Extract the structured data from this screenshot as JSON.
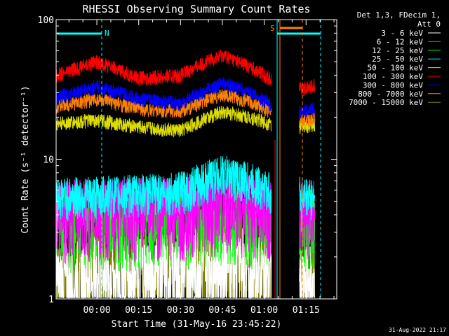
{
  "chart_data": {
    "type": "line",
    "title": "RHESSI Observing Summary Count Rates",
    "xlabel": "Start Time (31-May-16 23:45:22)",
    "ylabel": "Count Rate (s⁻¹ detector⁻¹)",
    "y_scale": "log",
    "ylim": [
      1,
      100
    ],
    "xlim_minutes": [
      -14.6,
      86
    ],
    "y_ticks": [
      {
        "value": 1,
        "label": "1"
      },
      {
        "value": 10,
        "label": "10"
      },
      {
        "value": 100,
        "label": "100"
      }
    ],
    "x_ticks": [
      {
        "value": 0,
        "label": "00:00"
      },
      {
        "value": 15,
        "label": "00:15"
      },
      {
        "value": 30,
        "label": "00:30"
      },
      {
        "value": 45,
        "label": "00:45"
      },
      {
        "value": 60,
        "label": "01:00"
      },
      {
        "value": 75,
        "label": "01:15"
      }
    ],
    "legend_header": [
      "Det 1,3, FDecim 1,",
      "Att 0"
    ],
    "legend_position": "right",
    "series": [
      {
        "name": "3 - 6 keV",
        "color": "#ffffff",
        "x": [
          -14,
          0,
          15,
          30,
          45,
          55,
          62,
          74,
          78
        ],
        "y": [
          1.3,
          1.5,
          1.6,
          1.6,
          2.2,
          1.6,
          1.4,
          1.3,
          1.3
        ]
      },
      {
        "name": "6 - 12 keV",
        "color": "#ff00ff",
        "x": [
          -14,
          0,
          15,
          30,
          45,
          55,
          62,
          74,
          78
        ],
        "y": [
          4.5,
          4.5,
          4.6,
          4.6,
          5.0,
          4.8,
          4.6,
          4.5,
          4.5
        ]
      },
      {
        "name": "12 - 25 keV",
        "color": "#00ff00",
        "x": [
          -14,
          0,
          15,
          30,
          45,
          55,
          62,
          74,
          78
        ],
        "y": [
          3.8,
          3.8,
          3.9,
          3.9,
          4.2,
          4.0,
          3.9,
          3.8,
          3.8
        ]
      },
      {
        "name": "25 - 50 keV",
        "color": "#00ffff",
        "x": [
          -14,
          0,
          15,
          30,
          45,
          55,
          62,
          74,
          78
        ],
        "y": [
          5.5,
          5.6,
          5.8,
          6.0,
          8.0,
          7.0,
          6.0,
          5.5,
          5.5
        ]
      },
      {
        "name": "50 - 100 keV",
        "color": "#dddd00",
        "x": [
          -14,
          0,
          15,
          30,
          45,
          55,
          62,
          74,
          78
        ],
        "y": [
          18,
          19,
          17,
          16,
          22,
          20,
          18,
          17,
          18
        ]
      },
      {
        "name": "100 - 300 keV",
        "color": "#ff0000",
        "x": [
          -14,
          0,
          15,
          30,
          45,
          55,
          62,
          74,
          78
        ],
        "y": [
          40,
          50,
          38,
          40,
          56,
          46,
          38,
          32,
          34
        ]
      },
      {
        "name": "300 - 800 keV",
        "color": "#0000ff",
        "x": [
          -14,
          0,
          15,
          30,
          45,
          55,
          62,
          74,
          78
        ],
        "y": [
          28,
          33,
          27,
          25,
          35,
          30,
          25,
          22,
          23
        ]
      },
      {
        "name": "800 - 7000 keV",
        "color": "#ff8000",
        "x": [
          -14,
          0,
          15,
          30,
          45,
          55,
          62,
          74,
          78
        ],
        "y": [
          24,
          27,
          23,
          22,
          29,
          26,
          22,
          19,
          20
        ]
      },
      {
        "name": "7000 - 15000 keV",
        "color": "#808000",
        "x": [
          -14,
          0,
          15,
          30,
          45,
          55,
          62,
          74,
          78
        ],
        "y": [
          1.5,
          1.8,
          2.0,
          2.0,
          2.6,
          2.0,
          1.6,
          1.4,
          1.4
        ]
      }
    ],
    "markers": [
      {
        "label": "N",
        "color": "#00ffff"
      },
      {
        "label": "S",
        "color": "#ff8000"
      }
    ],
    "footer_date": "31-Aug-2022 21:17"
  }
}
